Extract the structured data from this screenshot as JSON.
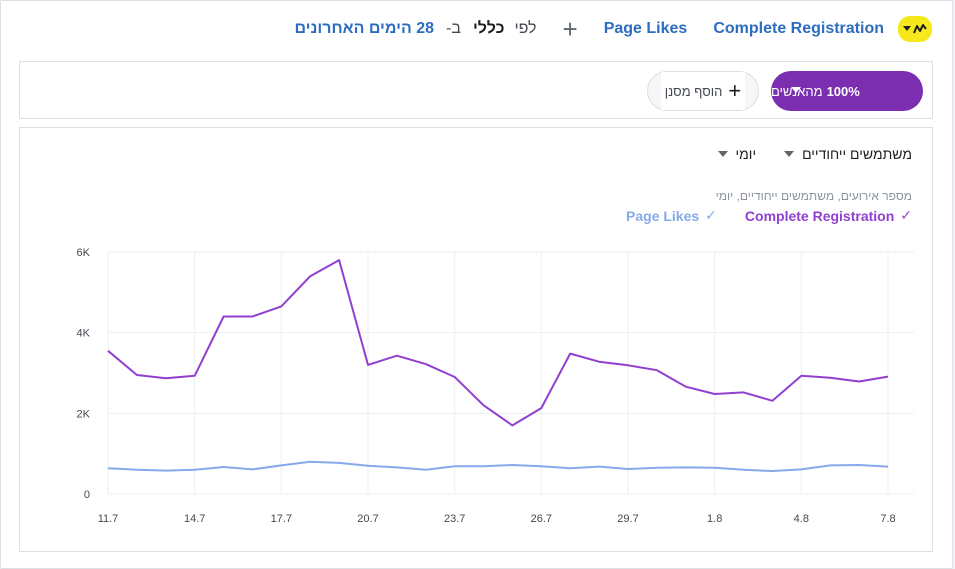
{
  "header": {
    "metric_1": "Complete Registration",
    "metric_2": "Page Likes",
    "by_label": "לפי",
    "breakdown": "כללי",
    "in_label": "ב-",
    "date_range": "28 הימים האחרונים"
  },
  "filters": {
    "audience_percent": "100%",
    "audience_label": "מהאנשים",
    "add_filter_label": "הוסף מסנן"
  },
  "chart_panel": {
    "dropdown_metric": "משתמשים ייחודיים",
    "dropdown_interval": "יומי",
    "subtitle": "מספר אירועים, משתמשים ייחודיים, יומי"
  },
  "colors": {
    "complete_registration": "#913fd1",
    "page_likes": "#86a9ea",
    "accent_blue": "#2d6dbf",
    "audience_pill": "#7b2fb0"
  },
  "chart_data": {
    "type": "line",
    "x": [
      "11.7",
      "12.7",
      "13.7",
      "14.7",
      "15.7",
      "16.7",
      "17.7",
      "18.7",
      "19.7",
      "20.7",
      "21.7",
      "22.7",
      "23.7",
      "24.7",
      "25.7",
      "26.7",
      "27.7",
      "28.7",
      "29.7",
      "30.7",
      "31.7",
      "1.8",
      "2.8",
      "3.8",
      "4.8",
      "5.8",
      "6.8",
      "7.8"
    ],
    "x_tick_labels": [
      "11.7",
      "14.7",
      "17.7",
      "20.7",
      "23.7",
      "26.7",
      "29.7",
      "1.8",
      "4.8",
      "7.8"
    ],
    "y_tick_labels": [
      "0",
      "2K",
      "4K",
      "6K"
    ],
    "ylim": [
      0,
      6000
    ],
    "grid": true,
    "legend_position": "top-right",
    "series": [
      {
        "name": "Complete Registration",
        "color": "#913fd1",
        "values": [
          3550,
          2950,
          2870,
          2930,
          4400,
          4400,
          4650,
          5400,
          5800,
          3200,
          3430,
          3220,
          2900,
          2200,
          1700,
          2130,
          3480,
          3280,
          3190,
          3070,
          2660,
          2480,
          2520,
          2310,
          2930,
          2880,
          2790,
          2910
        ]
      },
      {
        "name": "Page Likes",
        "color": "#86a9ea",
        "values": [
          640,
          600,
          580,
          600,
          670,
          610,
          710,
          800,
          770,
          700,
          660,
          600,
          690,
          690,
          720,
          690,
          640,
          680,
          620,
          650,
          660,
          650,
          600,
          570,
          610,
          710,
          720,
          680
        ]
      }
    ]
  }
}
